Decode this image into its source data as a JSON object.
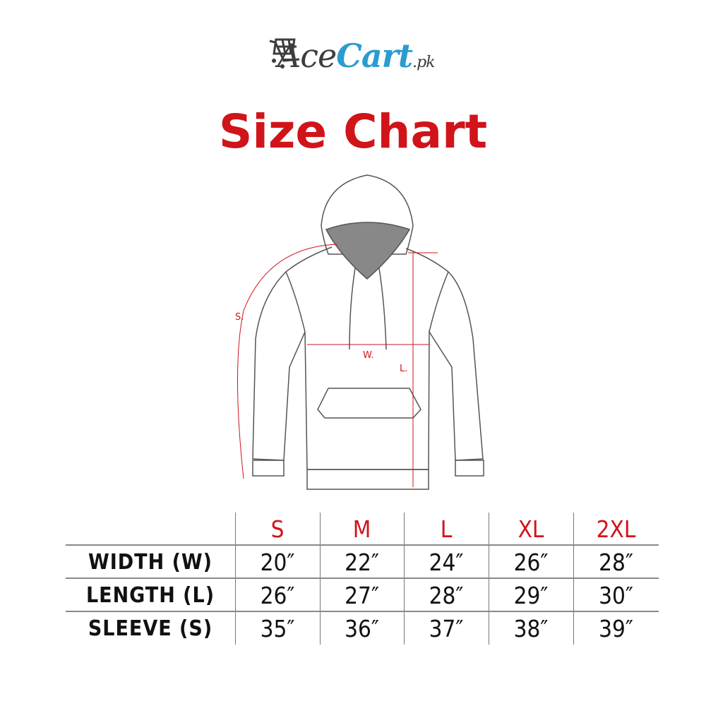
{
  "logo": {
    "ace": "Ace",
    "cart": "Cart",
    "tld": ".pk",
    "icon": "shopping-cart-icon",
    "colors": {
      "ace": "#3d3d3d",
      "cart": "#2b9ccf"
    }
  },
  "title": "Size Chart",
  "title_color": "#d0141a",
  "diagram": {
    "labels": {
      "sleeve": "S.",
      "width": "W.",
      "length": "L."
    },
    "measure_color": "#d0141a"
  },
  "table": {
    "sizes": [
      "S",
      "M",
      "L",
      "XL",
      "2XL"
    ],
    "rows": [
      {
        "label": "WIDTH (W)",
        "values": [
          "20″",
          "22″",
          "24″",
          "26″",
          "28″"
        ]
      },
      {
        "label": "LENGTH (L)",
        "values": [
          "26″",
          "27″",
          "28″",
          "29″",
          "30″"
        ]
      },
      {
        "label": "SLEEVE (S)",
        "values": [
          "35″",
          "36″",
          "37″",
          "38″",
          "39″"
        ]
      }
    ]
  }
}
